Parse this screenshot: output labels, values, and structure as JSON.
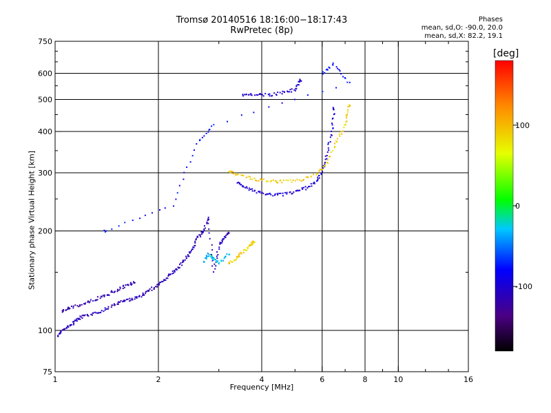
{
  "title_line1": "Tromsø 20140516 18:16:00−18:17:43",
  "title_line2": "RwPretec (8p)",
  "phases": {
    "header": "Phases",
    "line_o": "mean, sd,O: -90.0, 20.0",
    "line_x": "mean, sd,X: 82.2, 19.1"
  },
  "colorbar": {
    "unit": "[deg]",
    "ticks": [
      {
        "value": 100,
        "label": "100"
      },
      {
        "value": 0,
        "label": "0"
      },
      {
        "value": -100,
        "label": "-100"
      }
    ],
    "range": [
      -180,
      180
    ]
  },
  "chart_data": {
    "type": "scatter",
    "title": "Tromsø 20140516 18:16:00−18:17:43",
    "subtitle": "RwPretec (8p)",
    "xlabel": "Frequency [MHz]",
    "ylabel": "Stationary phase Virtual Height [km]",
    "xscale": "log",
    "yscale": "log",
    "xlim": [
      1,
      16
    ],
    "ylim": [
      75,
      750
    ],
    "x_ticks": [
      1,
      2,
      4,
      6,
      8,
      10,
      16
    ],
    "x_minor_ticks": [
      3,
      5,
      7,
      9,
      12,
      14
    ],
    "y_ticks": [
      75,
      100,
      200,
      300,
      400,
      500,
      600,
      750
    ],
    "y_minor_ticks": [
      150,
      250,
      350,
      450,
      550,
      650,
      700
    ],
    "grid_x": [
      2,
      4,
      6,
      8,
      10
    ],
    "grid_y": [
      100,
      200,
      300,
      400,
      500,
      600
    ],
    "color_by": "phase [deg]",
    "series": [
      {
        "points": [
          [
            1.02,
            96
          ],
          [
            1.05,
            100
          ],
          [
            1.1,
            103
          ],
          [
            1.15,
            107
          ],
          [
            1.2,
            110
          ],
          [
            1.3,
            112
          ],
          [
            1.4,
            116
          ],
          [
            1.5,
            120
          ],
          [
            1.6,
            123
          ],
          [
            1.7,
            125
          ],
          [
            1.8,
            128
          ],
          [
            1.9,
            133
          ],
          [
            2.0,
            137
          ],
          [
            2.1,
            143
          ],
          [
            2.2,
            150
          ],
          [
            2.3,
            155
          ],
          [
            2.4,
            165
          ],
          [
            2.5,
            175
          ],
          [
            2.6,
            190
          ],
          [
            2.7,
            200
          ],
          [
            2.8,
            220
          ],
          [
            2.9,
            150
          ],
          [
            3.0,
            180
          ],
          [
            3.1,
            190
          ],
          [
            3.2,
            197
          ]
        ],
        "phase": -110
      },
      {
        "points": [
          [
            1.05,
            114
          ],
          [
            1.1,
            117
          ],
          [
            1.2,
            120
          ],
          [
            1.3,
            124
          ],
          [
            1.4,
            127
          ],
          [
            1.5,
            132
          ],
          [
            1.6,
            136
          ],
          [
            1.7,
            140
          ]
        ],
        "phase": -115
      },
      {
        "points": [
          [
            2.7,
            160
          ],
          [
            2.8,
            170
          ],
          [
            2.9,
            165
          ],
          [
            3.0,
            160
          ],
          [
            3.2,
            170
          ]
        ],
        "phase": -30
      },
      {
        "points": [
          [
            3.2,
            160
          ],
          [
            3.4,
            165
          ],
          [
            3.5,
            172
          ],
          [
            3.7,
            180
          ],
          [
            3.8,
            186
          ]
        ],
        "phase": 90
      },
      {
        "points": [
          [
            3.4,
            280
          ],
          [
            3.6,
            270
          ],
          [
            3.9,
            262
          ],
          [
            4.2,
            258
          ],
          [
            4.6,
            258
          ],
          [
            5.0,
            262
          ],
          [
            5.4,
            270
          ],
          [
            5.8,
            285
          ],
          [
            6.0,
            300
          ],
          [
            6.2,
            340
          ],
          [
            6.4,
            400
          ],
          [
            6.5,
            470
          ]
        ],
        "phase": -100
      },
      {
        "points": [
          [
            3.2,
            305
          ],
          [
            3.4,
            295
          ],
          [
            3.8,
            287
          ],
          [
            4.2,
            283
          ],
          [
            4.6,
            282
          ],
          [
            5.2,
            285
          ],
          [
            5.8,
            296
          ],
          [
            6.2,
            320
          ],
          [
            6.6,
            370
          ],
          [
            7.0,
            420
          ],
          [
            7.2,
            480
          ]
        ],
        "phase": 90
      },
      {
        "points": [
          [
            3.5,
            515
          ],
          [
            3.8,
            520
          ],
          [
            4.2,
            515
          ],
          [
            4.6,
            525
          ],
          [
            5.0,
            535
          ],
          [
            5.2,
            575
          ]
        ],
        "phase": -100
      },
      {
        "points": [
          [
            6.0,
            600
          ],
          [
            6.5,
            640
          ],
          [
            7.2,
            560
          ],
          [
            2.9,
            420
          ],
          [
            2.6,
            370
          ],
          [
            2.2,
            240
          ],
          [
            1.4,
            200
          ]
        ],
        "phase": -80
      }
    ]
  }
}
